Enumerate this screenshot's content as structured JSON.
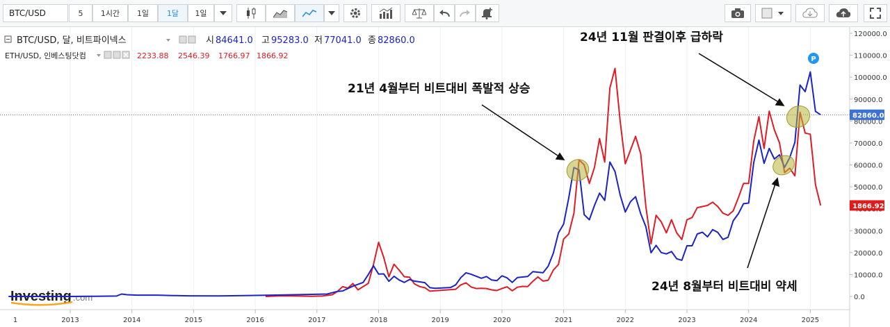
{
  "toolbar": {
    "symbol": "BTC/USD",
    "intervals": [
      "5",
      "1시간",
      "1일",
      "1달",
      "1일"
    ],
    "active_interval": "1달"
  },
  "legend": {
    "main": {
      "name": "BTC/USD, 달, 비트파이넥스",
      "open_label": "시",
      "open": "84641.0",
      "high_label": "고",
      "high": "95283.0",
      "low_label": "저",
      "low": "77041.0",
      "close_label": "종",
      "close": "82860.0"
    },
    "overlay": {
      "name": "ETH/USD, 인베스팅닷컴",
      "open": "2233.88",
      "high": "2546.39",
      "low": "1766.97",
      "close": "1866.92"
    }
  },
  "annotations": {
    "a1": "21년 4월부터 비트대비 폭발적 상승",
    "a2": "24년 11월 판결이후 급하락",
    "a3": "24년 8월부터 비트대비 약세"
  },
  "watermark": {
    "main": "Investing",
    "suffix": ".com"
  },
  "badges": {
    "btc_last": "82860.0",
    "eth_last": "1866.92",
    "marker": "P"
  },
  "colors": {
    "btc": "#1a22c8",
    "eth": "#e01b24",
    "btc_badge": "#3d6fd8",
    "eth_badge": "#e31a1a",
    "marker": "#2196f3",
    "highlight": "#b7b53a"
  },
  "chart_data": {
    "type": "line",
    "x_label_first": "1",
    "x_ticks": [
      "2013",
      "2014",
      "2015",
      "2016",
      "2017",
      "2018",
      "2019",
      "2020",
      "2021",
      "2022",
      "2023",
      "2024",
      "2025"
    ],
    "y_ticks": [
      "120000.0",
      "110000.0",
      "100000.0",
      "90000.0",
      "80000.0",
      "70000.0",
      "60000.0",
      "50000.0",
      "40000.0",
      "30000.0",
      "20000.0",
      "10000.0",
      "0.0"
    ],
    "ylim": [
      0,
      120000
    ],
    "series": [
      {
        "name": "BTC/USD",
        "points": [
          [
            "2012-01",
            0
          ],
          [
            "2012-06",
            0
          ],
          [
            "2013-01",
            0
          ],
          [
            "2013-06",
            100
          ],
          [
            "2013-10",
            200
          ],
          [
            "2013-11",
            1100
          ],
          [
            "2013-12",
            800
          ],
          [
            "2014-02",
            600
          ],
          [
            "2014-06",
            600
          ],
          [
            "2014-09",
            400
          ],
          [
            "2014-12",
            300
          ],
          [
            "2015-06",
            250
          ],
          [
            "2015-12",
            430
          ],
          [
            "2016-06",
            670
          ],
          [
            "2016-12",
            960
          ],
          [
            "2017-03",
            1100
          ],
          [
            "2017-05",
            2300
          ],
          [
            "2017-06",
            2500
          ],
          [
            "2017-08",
            4700
          ],
          [
            "2017-10",
            6400
          ],
          [
            "2017-11",
            10000
          ],
          [
            "2017-12",
            14000
          ],
          [
            "2018-01",
            10200
          ],
          [
            "2018-02",
            10300
          ],
          [
            "2018-03",
            6900
          ],
          [
            "2018-04",
            9200
          ],
          [
            "2018-05",
            7500
          ],
          [
            "2018-06",
            6400
          ],
          [
            "2018-07",
            7700
          ],
          [
            "2018-08",
            7000
          ],
          [
            "2018-10",
            6300
          ],
          [
            "2018-11",
            4000
          ],
          [
            "2018-12",
            3700
          ],
          [
            "2019-03",
            4100
          ],
          [
            "2019-04",
            5300
          ],
          [
            "2019-05",
            8600
          ],
          [
            "2019-06",
            10800
          ],
          [
            "2019-07",
            10100
          ],
          [
            "2019-09",
            8300
          ],
          [
            "2019-10",
            9100
          ],
          [
            "2019-11",
            7500
          ],
          [
            "2019-12",
            7200
          ],
          [
            "2020-01",
            9400
          ],
          [
            "2020-02",
            8500
          ],
          [
            "2020-03",
            6400
          ],
          [
            "2020-04",
            8600
          ],
          [
            "2020-06",
            9100
          ],
          [
            "2020-07",
            11300
          ],
          [
            "2020-09",
            10800
          ],
          [
            "2020-10",
            13800
          ],
          [
            "2020-11",
            19700
          ],
          [
            "2020-12",
            29000
          ],
          [
            "2021-01",
            33000
          ],
          [
            "2021-02",
            45000
          ],
          [
            "2021-03",
            58800
          ],
          [
            "2021-04",
            57700
          ],
          [
            "2021-05",
            37300
          ],
          [
            "2021-06",
            35000
          ],
          [
            "2021-07",
            41500
          ],
          [
            "2021-08",
            47100
          ],
          [
            "2021-09",
            43800
          ],
          [
            "2021-10",
            61300
          ],
          [
            "2021-11",
            57000
          ],
          [
            "2021-12",
            46300
          ],
          [
            "2022-01",
            38500
          ],
          [
            "2022-02",
            43200
          ],
          [
            "2022-03",
            45500
          ],
          [
            "2022-04",
            37700
          ],
          [
            "2022-05",
            31800
          ],
          [
            "2022-06",
            19900
          ],
          [
            "2022-07",
            23300
          ],
          [
            "2022-08",
            20000
          ],
          [
            "2022-09",
            19400
          ],
          [
            "2022-10",
            20500
          ],
          [
            "2022-11",
            17200
          ],
          [
            "2022-12",
            16500
          ],
          [
            "2023-01",
            23100
          ],
          [
            "2023-02",
            23100
          ],
          [
            "2023-03",
            28500
          ],
          [
            "2023-04",
            29300
          ],
          [
            "2023-05",
            27200
          ],
          [
            "2023-06",
            30500
          ],
          [
            "2023-07",
            29200
          ],
          [
            "2023-08",
            26000
          ],
          [
            "2023-09",
            27000
          ],
          [
            "2023-10",
            34500
          ],
          [
            "2023-11",
            37700
          ],
          [
            "2023-12",
            42300
          ],
          [
            "2024-01",
            42600
          ],
          [
            "2024-02",
            61200
          ],
          [
            "2024-03",
            71300
          ],
          [
            "2024-04",
            60700
          ],
          [
            "2024-05",
            67500
          ],
          [
            "2024-06",
            62700
          ],
          [
            "2024-07",
            64600
          ],
          [
            "2024-08",
            58900
          ],
          [
            "2024-09",
            63300
          ],
          [
            "2024-10",
            70300
          ],
          [
            "2024-11",
            96400
          ],
          [
            "2024-12",
            93400
          ],
          [
            "2025-01",
            102400
          ],
          [
            "2025-02",
            84400
          ],
          [
            "2025-03",
            82860
          ]
        ]
      },
      {
        "name": "ETH/USD",
        "points": [
          [
            "2016-03",
            0
          ],
          [
            "2016-06",
            300
          ],
          [
            "2016-09",
            200
          ],
          [
            "2016-12",
            100
          ],
          [
            "2017-02",
            200
          ],
          [
            "2017-04",
            800
          ],
          [
            "2017-05",
            2300
          ],
          [
            "2017-06",
            4500
          ],
          [
            "2017-07",
            3800
          ],
          [
            "2017-08",
            5900
          ],
          [
            "2017-09",
            3000
          ],
          [
            "2017-10",
            4500
          ],
          [
            "2017-11",
            6000
          ],
          [
            "2017-12",
            14500
          ],
          [
            "2018-01",
            24700
          ],
          [
            "2018-02",
            17800
          ],
          [
            "2018-03",
            9000
          ],
          [
            "2018-04",
            14700
          ],
          [
            "2018-05",
            12000
          ],
          [
            "2018-06",
            9000
          ],
          [
            "2018-07",
            8800
          ],
          [
            "2018-08",
            5700
          ],
          [
            "2018-09",
            4500
          ],
          [
            "2018-10",
            4000
          ],
          [
            "2018-11",
            2400
          ],
          [
            "2018-12",
            2600
          ],
          [
            "2019-02",
            2900
          ],
          [
            "2019-04",
            3300
          ],
          [
            "2019-05",
            5300
          ],
          [
            "2019-06",
            6200
          ],
          [
            "2019-07",
            4300
          ],
          [
            "2019-08",
            3600
          ],
          [
            "2019-09",
            3700
          ],
          [
            "2019-10",
            3600
          ],
          [
            "2019-11",
            3000
          ],
          [
            "2019-12",
            2700
          ],
          [
            "2020-01",
            3600
          ],
          [
            "2020-02",
            4400
          ],
          [
            "2020-03",
            2600
          ],
          [
            "2020-04",
            4200
          ],
          [
            "2020-05",
            4600
          ],
          [
            "2020-06",
            4500
          ],
          [
            "2020-07",
            6900
          ],
          [
            "2020-08",
            8900
          ],
          [
            "2020-09",
            7000
          ],
          [
            "2020-10",
            7400
          ],
          [
            "2020-11",
            12000
          ],
          [
            "2020-12",
            14600
          ],
          [
            "2021-01",
            26200
          ],
          [
            "2021-02",
            28500
          ],
          [
            "2021-03",
            37900
          ],
          [
            "2021-04",
            62300
          ],
          [
            "2021-05",
            60000
          ],
          [
            "2021-06",
            51500
          ],
          [
            "2021-07",
            58900
          ],
          [
            "2021-08",
            72000
          ],
          [
            "2021-09",
            61300
          ],
          [
            "2021-10",
            95000
          ],
          [
            "2021-11",
            104000
          ],
          [
            "2021-12",
            80000
          ],
          [
            "2022-01",
            60500
          ],
          [
            "2022-02",
            66700
          ],
          [
            "2022-03",
            73000
          ],
          [
            "2022-04",
            65000
          ],
          [
            "2022-05",
            41000
          ],
          [
            "2022-06",
            24000
          ],
          [
            "2022-07",
            37000
          ],
          [
            "2022-08",
            34000
          ],
          [
            "2022-09",
            29000
          ],
          [
            "2022-10",
            35000
          ],
          [
            "2022-11",
            29000
          ],
          [
            "2022-12",
            26000
          ],
          [
            "2023-01",
            35000
          ],
          [
            "2023-02",
            36000
          ],
          [
            "2023-03",
            40500
          ],
          [
            "2023-04",
            41000
          ],
          [
            "2023-05",
            41500
          ],
          [
            "2023-06",
            43000
          ],
          [
            "2023-07",
            41000
          ],
          [
            "2023-08",
            38000
          ],
          [
            "2023-09",
            37000
          ],
          [
            "2023-10",
            39000
          ],
          [
            "2023-11",
            45000
          ],
          [
            "2023-12",
            51500
          ],
          [
            "2024-01",
            51500
          ],
          [
            "2024-02",
            71000
          ],
          [
            "2024-03",
            82000
          ],
          [
            "2024-04",
            67500
          ],
          [
            "2024-05",
            84500
          ],
          [
            "2024-06",
            76000
          ],
          [
            "2024-07",
            70000
          ],
          [
            "2024-08",
            56500
          ],
          [
            "2024-09",
            58500
          ],
          [
            "2024-10",
            55000
          ],
          [
            "2024-11",
            84000
          ],
          [
            "2024-12",
            74500
          ],
          [
            "2025-01",
            74000
          ],
          [
            "2025-02",
            51000
          ],
          [
            "2025-03",
            41500
          ]
        ]
      }
    ]
  }
}
